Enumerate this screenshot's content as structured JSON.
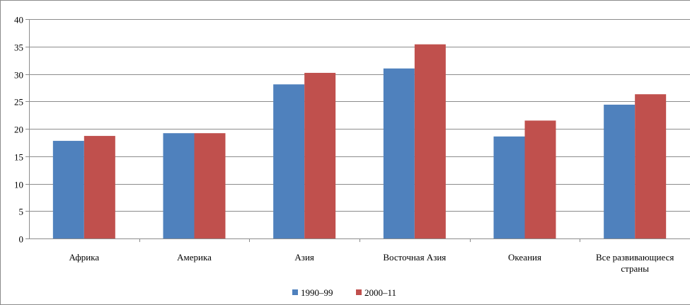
{
  "chart_data": {
    "type": "bar",
    "title": "",
    "xlabel": "",
    "ylabel": "",
    "ylim": [
      0,
      40
    ],
    "yticks": [
      0,
      5,
      10,
      15,
      20,
      25,
      30,
      35,
      40
    ],
    "grid": true,
    "legend_position": "bottom",
    "categories": [
      [
        "Африка"
      ],
      [
        "Америка"
      ],
      [
        "Азия"
      ],
      [
        "Восточная Азия"
      ],
      [
        "Океания"
      ],
      [
        "Все развивающиеся",
        "страны"
      ]
    ],
    "series": [
      {
        "name": "1990–99",
        "color": "#4f81bd",
        "values": [
          17.8,
          19.2,
          28.1,
          31.0,
          18.6,
          24.4
        ]
      },
      {
        "name": "2000–11",
        "color": "#c0504d",
        "values": [
          18.7,
          19.2,
          30.2,
          35.4,
          21.5,
          26.3
        ]
      }
    ]
  }
}
